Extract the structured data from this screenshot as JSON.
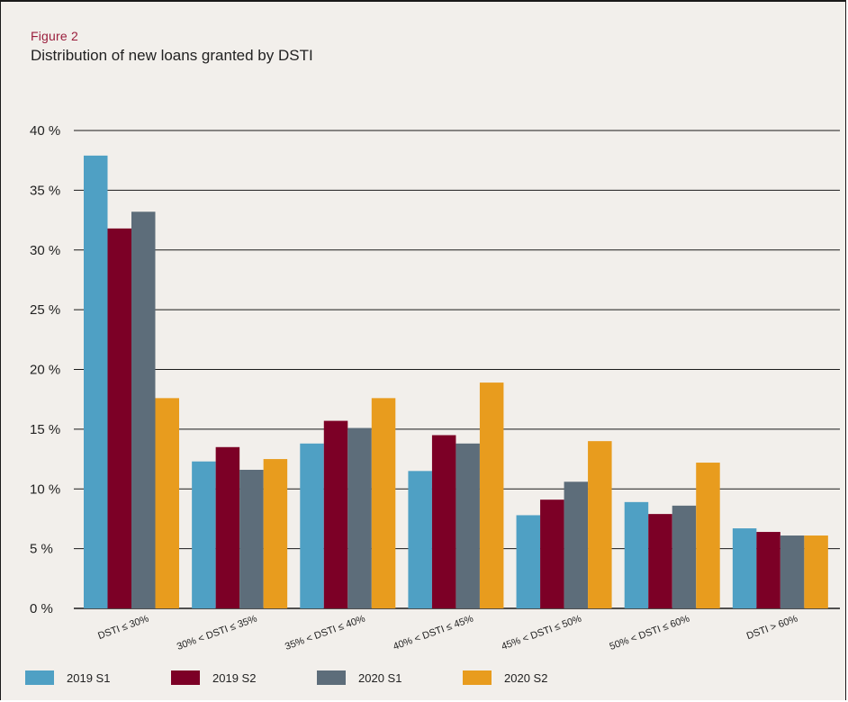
{
  "figure": {
    "label": "Figure 2",
    "title": "Distribution of new loans granted by DSTI"
  },
  "chart_data": {
    "type": "bar",
    "title": "Distribution of new loans granted by DSTI",
    "xlabel": "",
    "ylabel": "",
    "ylim": [
      0,
      40
    ],
    "yticks": [
      0,
      5,
      10,
      15,
      20,
      25,
      30,
      35,
      40
    ],
    "ytick_suffix": " %",
    "grid": true,
    "legend_position": "bottom",
    "categories": [
      "DSTI ≤ 30%",
      "30% < DSTI ≤ 35%",
      "35% < DSTI ≤ 40%",
      "40% < DSTI ≤ 45%",
      "45% < DSTI ≤ 50%",
      "50% < DSTI ≤ 60%",
      "DSTI > 60%"
    ],
    "series": [
      {
        "name": "2019 S1",
        "color": "#4fa0c4",
        "values": [
          37.9,
          12.3,
          13.8,
          11.5,
          7.8,
          8.9,
          6.7
        ]
      },
      {
        "name": "2019 S2",
        "color": "#7c0026",
        "values": [
          31.8,
          13.5,
          15.7,
          14.5,
          9.1,
          7.9,
          6.4
        ]
      },
      {
        "name": "2020 S1",
        "color": "#5d6d7a",
        "values": [
          33.2,
          11.6,
          15.1,
          13.8,
          10.6,
          8.6,
          6.1
        ]
      },
      {
        "name": "2020 S2",
        "color": "#e89c1e",
        "values": [
          17.6,
          12.5,
          17.6,
          18.9,
          14.0,
          12.2,
          6.1
        ]
      }
    ]
  }
}
